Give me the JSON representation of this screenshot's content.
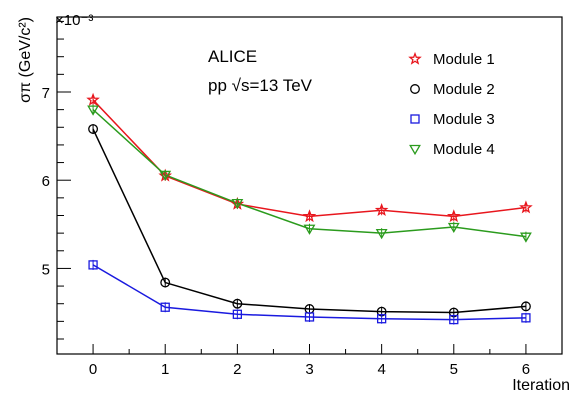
{
  "chart_data": {
    "type": "line",
    "xlabel": "Iteration",
    "ylabel": "σπ (GeV/c²)",
    "y_multiplier": "×10⁻³",
    "xlim": [
      -0.5,
      6.5
    ],
    "ylim": [
      4.03,
      7.85
    ],
    "x_ticks": [
      0,
      1,
      2,
      3,
      4,
      5,
      6
    ],
    "y_ticks": [
      5,
      6,
      7
    ],
    "annotation": [
      "ALICE",
      "pp √s=13 TeV"
    ],
    "legend_position": "top-right",
    "x": [
      0,
      1,
      2,
      3,
      4,
      5,
      6
    ],
    "series": [
      {
        "name": "Module 1",
        "color": "#e8161d",
        "marker": "star",
        "values": [
          6.91,
          6.05,
          5.73,
          5.59,
          5.66,
          5.59,
          5.69
        ]
      },
      {
        "name": "Module 2",
        "color": "#000000",
        "marker": "circle",
        "values": [
          6.58,
          4.84,
          4.6,
          4.54,
          4.51,
          4.5,
          4.57
        ]
      },
      {
        "name": "Module 3",
        "color": "#1a1adf",
        "marker": "square",
        "values": [
          5.04,
          4.56,
          4.48,
          4.45,
          4.43,
          4.42,
          4.44
        ]
      },
      {
        "name": "Module 4",
        "color": "#2b9b1d",
        "marker": "triangle-down",
        "values": [
          6.8,
          6.06,
          5.74,
          5.45,
          5.4,
          5.47,
          5.36
        ]
      }
    ]
  }
}
